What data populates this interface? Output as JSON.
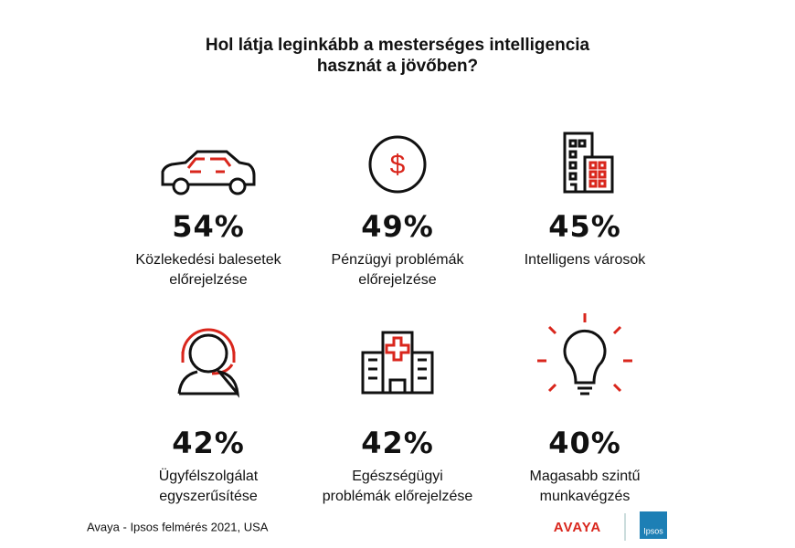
{
  "header": {
    "title_lines": [
      "Hol látja leginkább a mesterséges intelligencia",
      "hasznát a jövőben?"
    ]
  },
  "items": [
    {
      "value": "54%",
      "label_lines": [
        "Közlekedési  balesetek",
        "előrejelzése"
      ]
    },
    {
      "value": "49%",
      "label_lines": [
        "Pénzügyi problémák",
        "előrejelzése"
      ]
    },
    {
      "value": "45%",
      "label_lines": [
        "Intelligens városok"
      ]
    },
    {
      "value": "42%",
      "label_lines": [
        "Ügyfélszolgálat",
        "egyszerűsítése"
      ]
    },
    {
      "value": "42%",
      "label_lines": [
        "Egészségügyi",
        "problémák előrejelzése"
      ]
    },
    {
      "value": "40%",
      "label_lines": [
        "Magasabb szintű",
        "munkavégzés"
      ]
    }
  ],
  "footer": {
    "source": "Avaya - Ipsos felmérés  2021, USA",
    "logo_avaya": "AVAYA",
    "logo_ipsos": "Ipsos"
  }
}
